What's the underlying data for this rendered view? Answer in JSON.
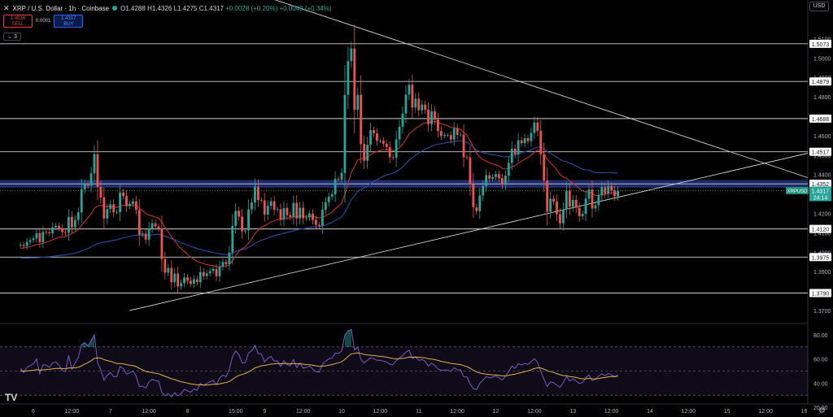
{
  "header": {
    "close_symbol": "✕",
    "symbol": "XRP / U.S. Dollar · 1h · Coinbase",
    "status_color": "#22ab94",
    "open": "O1.4288",
    "high": "H1.4326",
    "low": "L1.4275",
    "close": "C1.4317",
    "change": "+0.0028 (+0.20%)",
    "change2": "+0.0049 (+0.34%)"
  },
  "trade": {
    "sell_price": "1.4316",
    "sell_label": "SELL",
    "spread": "0.0001",
    "buy_price": "1.4317",
    "buy_label": "BUY"
  },
  "indicator_collapse": "3",
  "currency": "USD",
  "settings_icon": "gear-icon",
  "logo_text": "TV",
  "colors": {
    "up": "#26a69a",
    "down": "#ef5350",
    "ma_fast": "#c2332e",
    "ma_slow": "#2d4ba5",
    "rsi": "#7e57c2",
    "rsi_ma": "#e0b44c",
    "zone": "#22337a",
    "level": "#d0d0d0"
  },
  "chart_data": [
    {
      "type": "candlestick",
      "title": "XRP / U.S. Dollar · 1h · Coinbase",
      "ylim": [
        1.37,
        1.512
      ],
      "y_ticks": [
        1.37,
        1.38,
        1.39,
        1.4,
        1.41,
        1.42,
        1.43,
        1.44,
        1.45,
        1.46,
        1.47,
        1.48,
        1.49,
        1.5,
        1.51
      ],
      "y_tick_labels": [
        "1.3700",
        "1.3800",
        "1.3900",
        "1.4000",
        "1.4100",
        "1.4200",
        "1.4300",
        "1.4400",
        "1.4500",
        "1.4600",
        "1.4700",
        "1.4800",
        "1.4900",
        "1.5000",
        "1.5100"
      ],
      "x_labels": [
        "6",
        "12:00",
        "7",
        "12:00",
        "8",
        "15:00",
        "9",
        "12:00",
        "10",
        "12:00",
        "11",
        "12:00",
        "12",
        "12:00",
        "13",
        "12:00",
        "14",
        "12:00",
        "15",
        "12:00",
        "16"
      ],
      "x_label_hours": [
        0,
        12,
        24,
        36,
        48,
        63,
        72,
        84,
        96,
        108,
        120,
        132,
        144,
        156,
        168,
        180,
        192,
        204,
        216,
        228,
        240
      ],
      "first_bar_hour": -4,
      "bars_per_hour": 1,
      "support_resistance_levels": [
        1.5073,
        1.4879,
        1.4688,
        1.4517,
        1.4352,
        1.412,
        1.3975,
        1.379
      ],
      "level_labels": [
        "1.5073",
        "1.4879",
        "1.4688",
        "1.4517",
        "1.4352",
        "1.4120",
        "1.3975",
        "1.3790"
      ],
      "zone": [
        1.4332,
        1.4372
      ],
      "last_price": 1.4317,
      "last_price_symbol": "XRPUSD",
      "last_price_label": "1.4317",
      "countdown": "24:14",
      "trendlines": [
        {
          "from": {
            "hour": 74,
            "price": 1.5306
          },
          "to": {
            "hour": 248,
            "price": 1.4346
          }
        },
        {
          "from": {
            "hour": 30,
            "price": 1.37
          },
          "to": {
            "hour": 248,
            "price": 1.4536
          }
        }
      ],
      "closes": [
        1.4038,
        1.4032,
        1.4053,
        1.4062,
        1.4071,
        1.4098,
        1.4052,
        1.4104,
        1.4103,
        1.4097,
        1.4128,
        1.4135,
        1.4124,
        1.4104,
        1.41,
        1.4181,
        1.4129,
        1.4166,
        1.4205,
        1.4324,
        1.4353,
        1.4343,
        1.4406,
        1.4505,
        1.4337,
        1.4282,
        1.4174,
        1.4222,
        1.4247,
        1.4206,
        1.4207,
        1.4308,
        1.4289,
        1.4237,
        1.4249,
        1.4262,
        1.4218,
        1.409,
        1.4096,
        1.4065,
        1.4123,
        1.4149,
        1.4133,
        1.4122,
        1.3965,
        1.3895,
        1.3919,
        1.3846,
        1.389,
        1.3824,
        1.3841,
        1.387,
        1.3853,
        1.3838,
        1.3861,
        1.3846,
        1.3898,
        1.3877,
        1.3891,
        1.3904,
        1.3914,
        1.3877,
        1.3927,
        1.395,
        1.3938,
        1.3998,
        1.4136,
        1.4213,
        1.4184,
        1.4108,
        1.4113,
        1.4221,
        1.4256,
        1.4338,
        1.4269,
        1.4267,
        1.4194,
        1.4239,
        1.4262,
        1.4218,
        1.4221,
        1.4167,
        1.4228,
        1.4191,
        1.4181,
        1.4254,
        1.4174,
        1.4229,
        1.4175,
        1.4179,
        1.4198,
        1.4166,
        1.4141,
        1.4136,
        1.4219,
        1.4258,
        1.4286,
        1.4298,
        1.4378,
        1.4374,
        1.4408,
        1.481,
        1.4984,
        1.5049,
        1.4733,
        1.481,
        1.4557,
        1.4471,
        1.4553,
        1.4628,
        1.4612,
        1.4574,
        1.4574,
        1.4559,
        1.4541,
        1.4489,
        1.4486,
        1.4581,
        1.4646,
        1.4714,
        1.4812,
        1.4862,
        1.4745,
        1.479,
        1.4731,
        1.476,
        1.4734,
        1.4659,
        1.4725,
        1.4683,
        1.4624,
        1.4598,
        1.4603,
        1.4603,
        1.458,
        1.4638,
        1.4604,
        1.4605,
        1.4489,
        1.4488,
        1.4351,
        1.4231,
        1.4212,
        1.4292,
        1.4341,
        1.4396,
        1.4378,
        1.4387,
        1.4402,
        1.4381,
        1.4348,
        1.4394,
        1.446,
        1.4533,
        1.4504,
        1.4576,
        1.4561,
        1.4587,
        1.4572,
        1.4614,
        1.4668,
        1.4625,
        1.4504,
        1.4369,
        1.4208,
        1.4276,
        1.4261,
        1.4196,
        1.4149,
        1.422,
        1.4317,
        1.4234,
        1.4269,
        1.4229,
        1.4185,
        1.4198,
        1.4276,
        1.4323,
        1.4225,
        1.4242,
        1.4293,
        1.4335,
        1.4302,
        1.4341,
        1.4319,
        1.4288,
        1.4317
      ],
      "ma_fast_values": [
        1.402,
        1.4022,
        1.4025,
        1.4029,
        1.4033,
        1.404,
        1.4041,
        1.4047,
        1.4052,
        1.4056,
        1.4064,
        1.4071,
        1.4076,
        1.4078,
        1.408,
        1.4091,
        1.4096,
        1.4105,
        1.4117,
        1.4139,
        1.416,
        1.4177,
        1.4198,
        1.4227,
        1.4237,
        1.4242,
        1.4236,
        1.4234,
        1.4236,
        1.4233,
        1.423,
        1.4237,
        1.4242,
        1.4241,
        1.4242,
        1.4244,
        1.4241,
        1.4226,
        1.4214,
        1.4199,
        1.4191,
        1.4187,
        1.4181,
        1.4176,
        1.4155,
        1.4127,
        1.4105,
        1.4079,
        1.406,
        1.4036,
        1.4018,
        1.4004,
        1.3989,
        1.3975,
        1.3964,
        1.3953,
        1.3948,
        1.3941,
        1.3936,
        1.3933,
        1.3931,
        1.3925,
        1.3925,
        1.3927,
        1.3928,
        1.3935,
        1.3956,
        1.3983,
        1.4006,
        1.4017,
        1.4027,
        1.4047,
        1.4069,
        1.4096,
        1.4113,
        1.4129,
        1.4135,
        1.4145,
        1.4156,
        1.4162,
        1.4168,
        1.4168,
        1.4174,
        1.4175,
        1.4176,
        1.4183,
        1.4182,
        1.4186,
        1.4185,
        1.4184,
        1.4186,
        1.4184,
        1.418,
        1.4176,
        1.418,
        1.4187,
        1.4197,
        1.4207,
        1.4223,
        1.4237,
        1.4253,
        1.4298,
        1.4355,
        1.4413,
        1.4441,
        1.4474,
        1.4482,
        1.4481,
        1.4488,
        1.4501,
        1.4512,
        1.4518,
        1.4524,
        1.4528,
        1.4529,
        1.4525,
        1.4522,
        1.4527,
        1.4539,
        1.4556,
        1.4581,
        1.4609,
        1.4622,
        1.4638,
        1.4647,
        1.4659,
        1.4666,
        1.4666,
        1.4672,
        1.4673,
        1.4668,
        1.4661,
        1.4656,
        1.4651,
        1.4643,
        1.4642,
        1.4637,
        1.4633,
        1.4617,
        1.4602,
        1.4575,
        1.4541,
        1.4509,
        1.4489,
        1.4477,
        1.447,
        1.4461,
        1.4455,
        1.445,
        1.4443,
        1.4432,
        1.4428,
        1.4431,
        1.444,
        1.4446,
        1.4459,
        1.4468,
        1.4479,
        1.4487,
        1.4499,
        1.4515,
        1.4525,
        1.4523,
        1.4509,
        1.4478,
        1.4461,
        1.4444,
        1.4423,
        1.44,
        1.4387,
        1.4381,
        1.4366,
        1.4356,
        1.4343,
        1.4327,
        1.4315,
        1.4311,
        1.4312,
        1.4301,
        1.4293,
        1.4293,
        1.4297,
        1.4298,
        1.4302,
        1.4304,
        1.4302,
        1.4304
      ],
      "ma_slow_values": [
        1.397,
        1.397,
        1.397,
        1.3971,
        1.3971,
        1.3972,
        1.3973,
        1.3975,
        1.3976,
        1.3977,
        1.3979,
        1.3981,
        1.3983,
        1.3984,
        1.3986,
        1.399,
        1.3992,
        1.3995,
        1.4,
        1.4006,
        1.4013,
        1.4019,
        1.4027,
        1.4037,
        1.4044,
        1.4049,
        1.4052,
        1.4055,
        1.4058,
        1.4061,
        1.4064,
        1.4069,
        1.4074,
        1.4077,
        1.4081,
        1.4085,
        1.4088,
        1.4088,
        1.4088,
        1.4087,
        1.4088,
        1.409,
        1.4091,
        1.4093,
        1.4088,
        1.4082,
        1.4077,
        1.4069,
        1.4064,
        1.4056,
        1.4049,
        1.4043,
        1.4037,
        1.403,
        1.4025,
        1.4019,
        1.4015,
        1.401,
        1.4006,
        1.4002,
        1.3999,
        1.3995,
        1.3992,
        1.399,
        1.3988,
        1.3988,
        1.3994,
        1.4003,
        1.401,
        1.4014,
        1.4017,
        1.4025,
        1.4034,
        1.4046,
        1.4054,
        1.4062,
        1.4067,
        1.4074,
        1.408,
        1.4085,
        1.409,
        1.4093,
        1.4098,
        1.4102,
        1.4105,
        1.4111,
        1.4114,
        1.4119,
        1.4121,
        1.4124,
        1.4127,
        1.413,
        1.4131,
        1.4132,
        1.4136,
        1.4141,
        1.4147,
        1.4154,
        1.4163,
        1.4172,
        1.4181,
        1.4207,
        1.4238,
        1.4272,
        1.4291,
        1.4313,
        1.4324,
        1.4331,
        1.4341,
        1.4353,
        1.4364,
        1.4373,
        1.4383,
        1.4391,
        1.4398,
        1.4403,
        1.4407,
        1.4415,
        1.4426,
        1.4439,
        1.4456,
        1.4474,
        1.4486,
        1.4499,
        1.451,
        1.4521,
        1.4531,
        1.4537,
        1.4546,
        1.4552,
        1.4556,
        1.4559,
        1.4562,
        1.4565,
        1.4567,
        1.457,
        1.4573,
        1.4575,
        1.457,
        1.4566,
        1.4555,
        1.454,
        1.4526,
        1.4518,
        1.4512,
        1.4509,
        1.4505,
        1.4502,
        1.45,
        1.4497,
        1.4492,
        1.4491,
        1.4492,
        1.4497,
        1.45,
        1.4507,
        1.4512,
        1.4517,
        1.4521,
        1.4527,
        1.4535,
        1.4541,
        1.454,
        1.4533,
        1.4518,
        1.4509,
        1.45,
        1.4489,
        1.4477,
        1.447,
        1.4466,
        1.4458,
        1.4452,
        1.4444,
        1.4435,
        1.4427,
        1.4424,
        1.4423,
        1.4416,
        1.441,
        1.4409,
        1.4409,
        1.4409,
        1.441,
        1.441,
        1.4408,
        1.4408
      ]
    },
    {
      "type": "line",
      "title": "RSI",
      "ylim": [
        20,
        90
      ],
      "y_ticks": [
        20,
        40,
        60,
        80
      ],
      "y_tick_labels": [
        "20.00",
        "40.00",
        "60.00",
        "80.00"
      ],
      "bands": [
        30,
        50,
        70
      ],
      "rsi_values": [
        52.2,
        48.6,
        53.0,
        54.5,
        55.9,
        59.9,
        47.8,
        55.2,
        54.9,
        53.2,
        56.8,
        57.6,
        54.7,
        50.5,
        49.6,
        62.9,
        51.5,
        56.8,
        61.4,
        71.9,
        73.7,
        71.1,
        75.2,
        80.1,
        56.9,
        51.1,
        42.4,
        46.6,
        48.8,
        45.4,
        45.5,
        53.8,
        52.0,
        47.5,
        48.6,
        49.9,
        46.1,
        37.0,
        37.5,
        35.7,
        41.0,
        43.2,
        42.2,
        41.4,
        32.6,
        29.5,
        31.4,
        28.6,
        32.1,
        29.4,
        31.4,
        34.8,
        33.6,
        32.4,
        35.2,
        34.0,
        39.9,
        38.2,
        39.7,
        41.2,
        42.3,
        38.9,
        44.2,
        46.6,
        45.4,
        51.3,
        62.1,
        66.6,
        63.6,
        56.7,
        57.0,
        64.9,
        67.0,
        71.3,
        64.4,
        64.2,
        57.5,
        60.6,
        62.1,
        58.2,
        58.5,
        53.9,
        58.5,
        55.3,
        54.4,
        59.6,
        52.9,
        56.8,
        52.5,
        52.8,
        54.3,
        51.6,
        49.5,
        49.1,
        55.5,
        58.2,
        60.1,
        60.8,
        65.0,
        64.7,
        66.5,
        79.9,
        83.3,
        84.4,
        67.6,
        69.7,
        59.7,
        56.8,
        58.9,
        60.9,
        60.3,
        58.9,
        58.9,
        58.3,
        57.6,
        55.5,
        55.4,
        58.7,
        60.9,
        63.0,
        65.8,
        67.2,
        60.5,
        61.9,
        58.8,
        59.6,
        58.2,
        54.2,
        56.6,
        54.6,
        51.8,
        50.6,
        50.9,
        50.9,
        49.7,
        52.7,
        51.0,
        51.0,
        45.2,
        45.1,
        39.5,
        35.3,
        34.8,
        39.7,
        42.5,
        45.5,
        44.4,
        45.0,
        45.9,
        44.5,
        42.5,
        45.6,
        49.8,
        54.1,
        52.2,
        56.1,
        55.1,
        56.4,
        55.5,
        57.6,
        60.3,
        57.3,
        49.8,
        43.3,
        37.3,
        41.0,
        40.4,
        38.2,
        36.6,
        40.5,
        45.4,
        41.8,
        43.5,
        41.7,
        39.7,
        40.5,
        44.5,
        46.8,
        42.1,
        43.1,
        45.8,
        47.9,
        46.0,
        48.1,
        46.8,
        45.1,
        46.8
      ],
      "rsi_ma_values": [
        50.2,
        50.0,
        50.2,
        50.4,
        50.7,
        51.3,
        50.7,
        51.0,
        51.3,
        51.4,
        51.8,
        52.2,
        52.3,
        52.1,
        51.8,
        52.6,
        52.5,
        52.7,
        53.1,
        54.4,
        55.8,
        57.0,
        58.6,
        60.5,
        60.9,
        60.7,
        59.5,
        58.7,
        58.1,
        57.2,
        56.3,
        56.2,
        56.0,
        55.4,
        54.9,
        54.5,
        53.7,
        52.2,
        51.0,
        49.7,
        49.1,
        48.7,
        48.2,
        47.8,
        46.7,
        45.6,
        44.7,
        43.6,
        42.9,
        41.9,
        41.1,
        40.6,
        40.0,
        39.4,
        39.1,
        38.6,
        38.6,
        38.5,
        38.5,
        38.7,
        39.0,
        39.0,
        39.4,
        40.0,
        40.4,
        41.4,
        43.1,
        45.0,
        46.4,
        47.2,
        48.0,
        49.4,
        50.8,
        52.6,
        53.5,
        54.4,
        54.7,
        55.2,
        55.8,
        56.0,
        56.3,
        56.1,
        56.3,
        56.2,
        56.0,
        56.3,
        56.0,
        56.0,
        55.7,
        55.4,
        55.3,
        54.9,
        54.4,
        53.9,
        54.1,
        54.4,
        54.9,
        55.4,
        56.2,
        56.9,
        57.7,
        59.8,
        62.1,
        64.3,
        64.6,
        65.1,
        64.6,
        63.8,
        63.3,
        63.1,
        62.9,
        62.5,
        62.2,
        61.9,
        61.5,
        60.9,
        60.4,
        60.2,
        60.3,
        60.5,
        61.0,
        61.6,
        61.5,
        61.6,
        61.4,
        61.2,
        61.0,
        60.3,
        60.0,
        59.5,
        58.8,
        58.1,
        57.5,
        57.0,
        56.4,
        56.1,
        55.7,
        55.4,
        54.5,
        53.7,
        52.3,
        50.7,
        49.3,
        48.4,
        47.8,
        47.5,
        47.1,
        46.9,
        46.8,
        46.5,
        46.0,
        46.0,
        46.4,
        47.0,
        47.4,
        48.2,
        48.8,
        49.6,
        50.2,
        51.0,
        52.1,
        52.7,
        52.5,
        51.6,
        50.3,
        49.5,
        48.8,
        47.9,
        46.9,
        46.3,
        46.2,
        45.5,
        45.2,
        44.7,
        44.0,
        43.5,
        43.6,
        43.9,
        43.6,
        43.5,
        43.8,
        44.4,
        44.6,
        45.2,
        45.5,
        45.5,
        45.7
      ]
    }
  ]
}
